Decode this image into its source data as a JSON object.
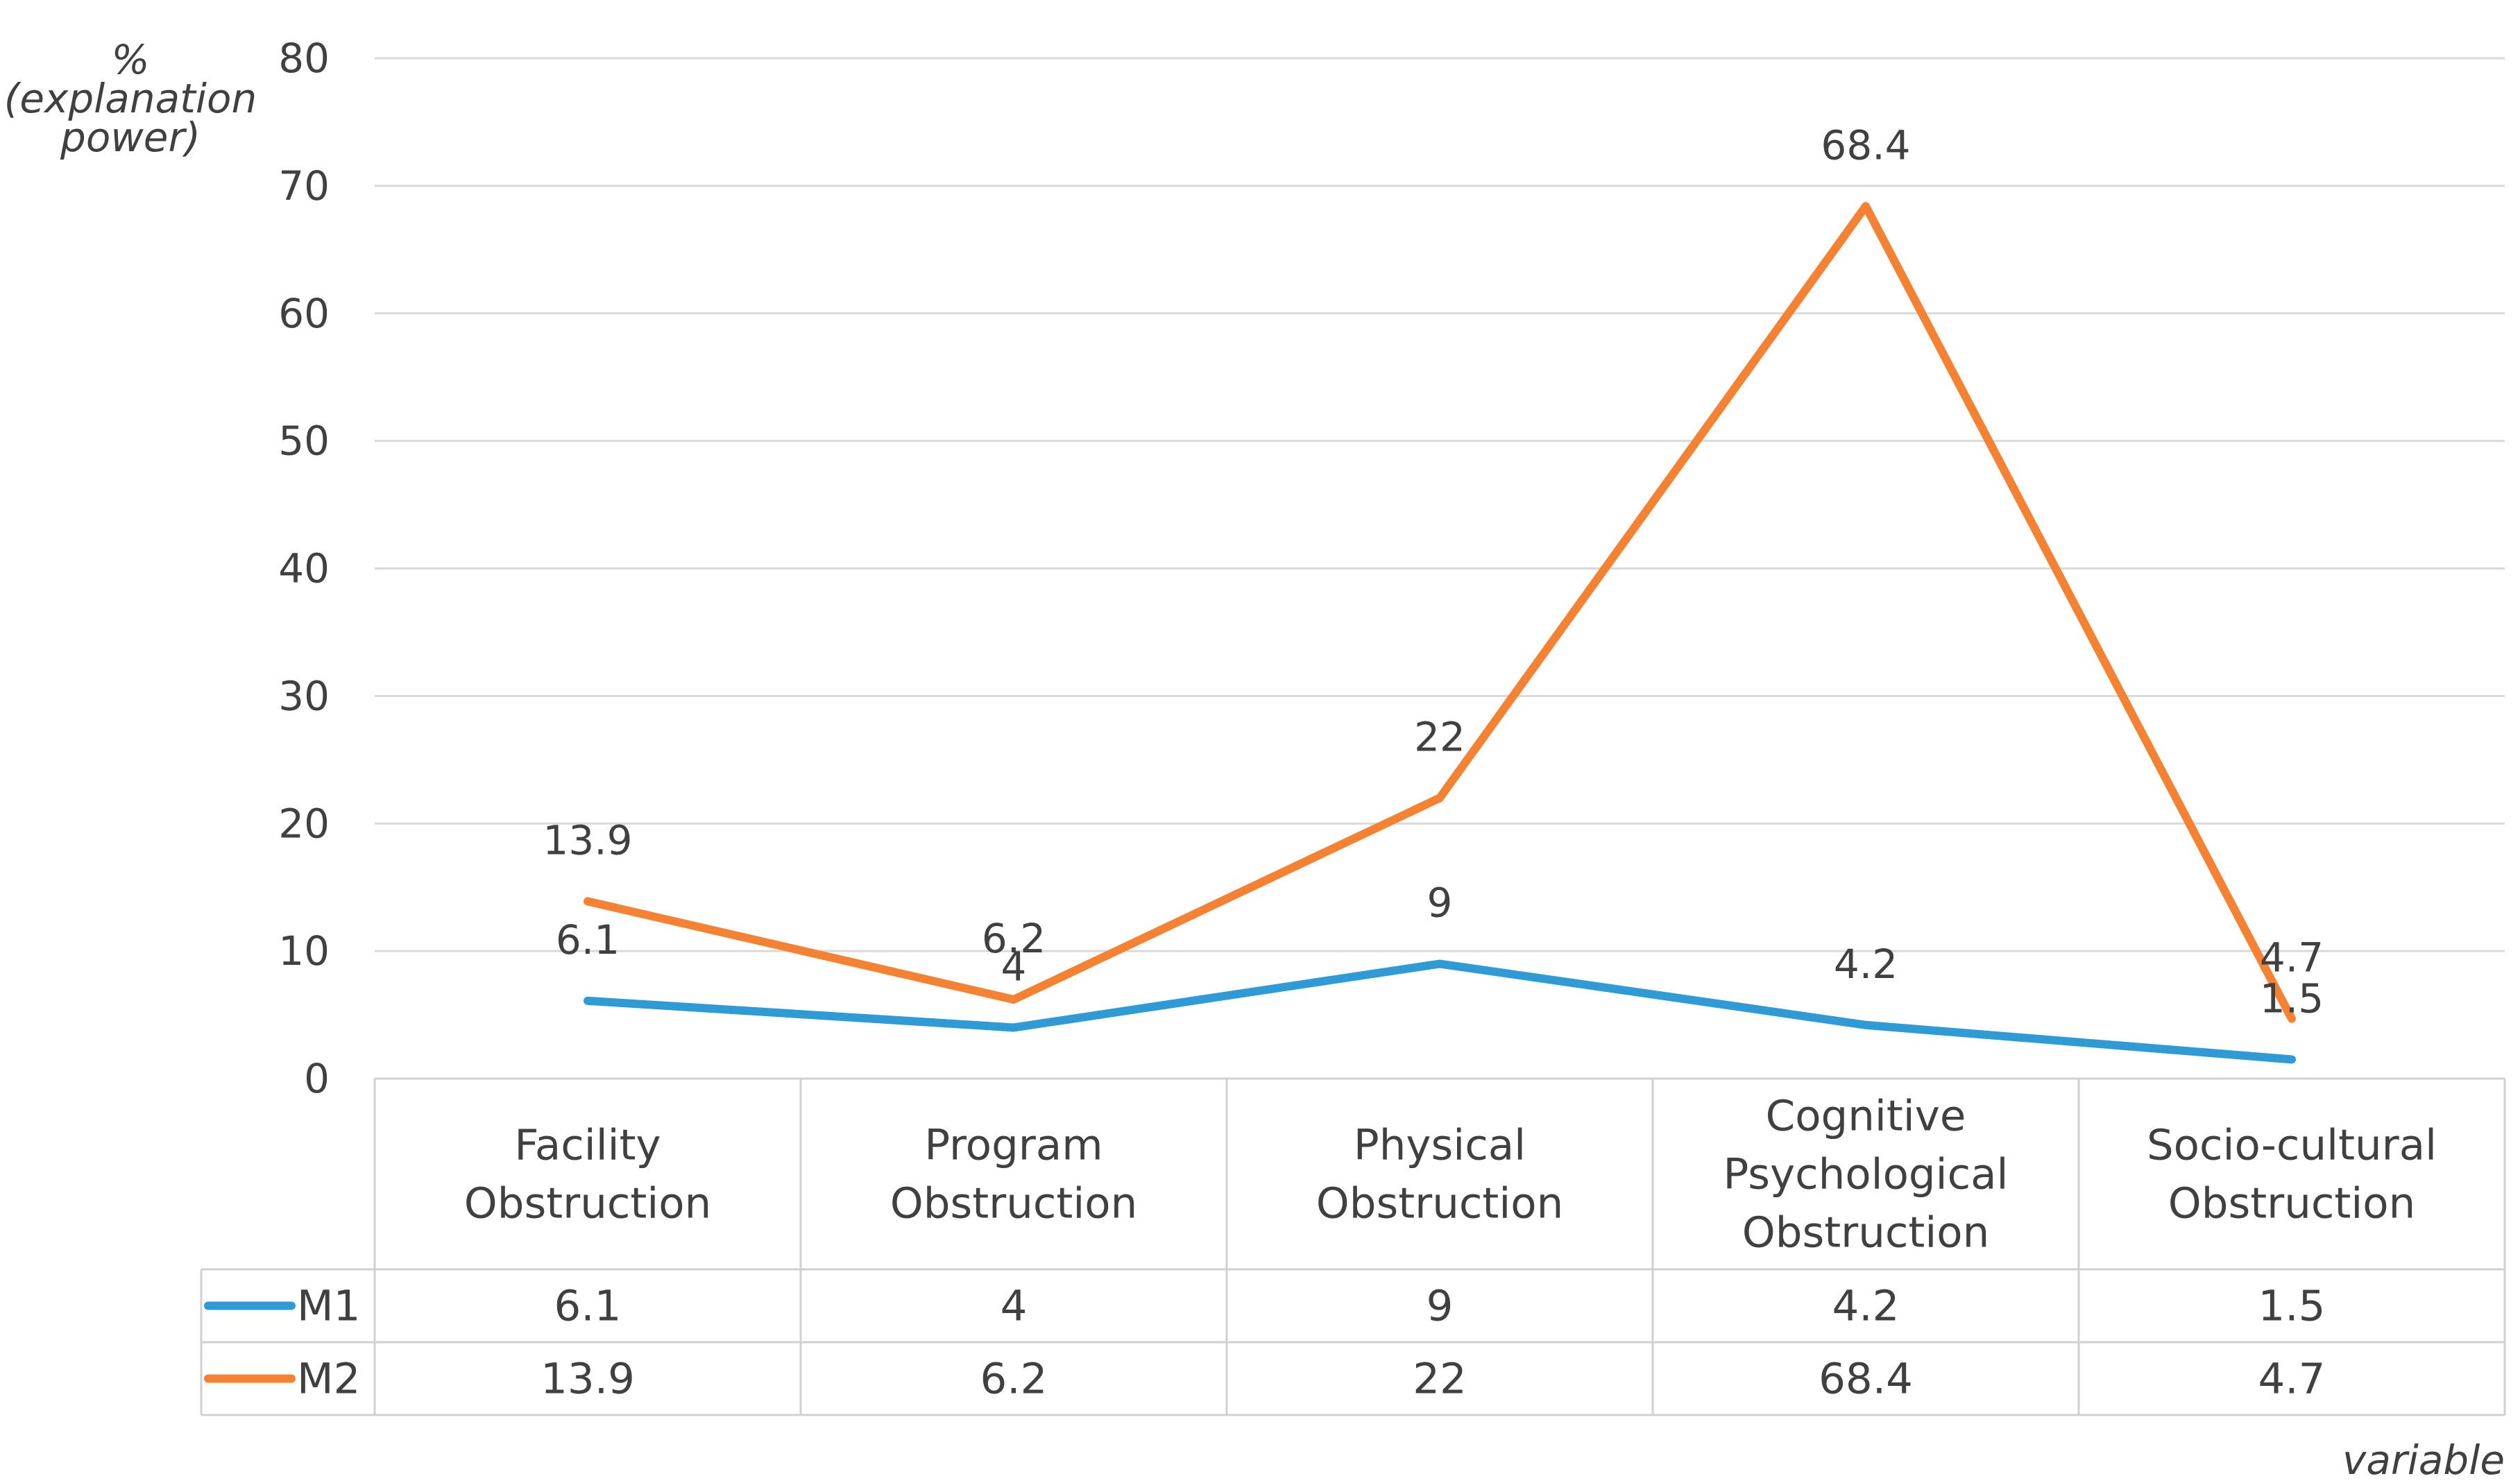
{
  "chart_data": {
    "type": "line",
    "title": "",
    "categories": [
      [
        "Facility",
        "Obstruction"
      ],
      [
        "Program",
        "Obstruction"
      ],
      [
        "Physical",
        "Obstruction"
      ],
      [
        "Cognitive",
        "Psychological",
        "Obstruction"
      ],
      [
        "Socio-cultural",
        "Obstruction"
      ]
    ],
    "series": [
      {
        "name": "M1",
        "color": "#2e9bd6",
        "values": [
          6.1,
          4,
          9,
          4.2,
          1.5
        ]
      },
      {
        "name": "M2",
        "color": "#f58232",
        "values": [
          13.9,
          6.2,
          22,
          68.4,
          4.7
        ]
      }
    ],
    "ylabel": [
      "%",
      "(explanation",
      "power)"
    ],
    "xlabel": "variable",
    "ylim": [
      0,
      80
    ],
    "yticks": [
      0,
      10,
      20,
      30,
      40,
      50,
      60,
      70,
      80
    ],
    "grid": true,
    "data_table": true
  }
}
